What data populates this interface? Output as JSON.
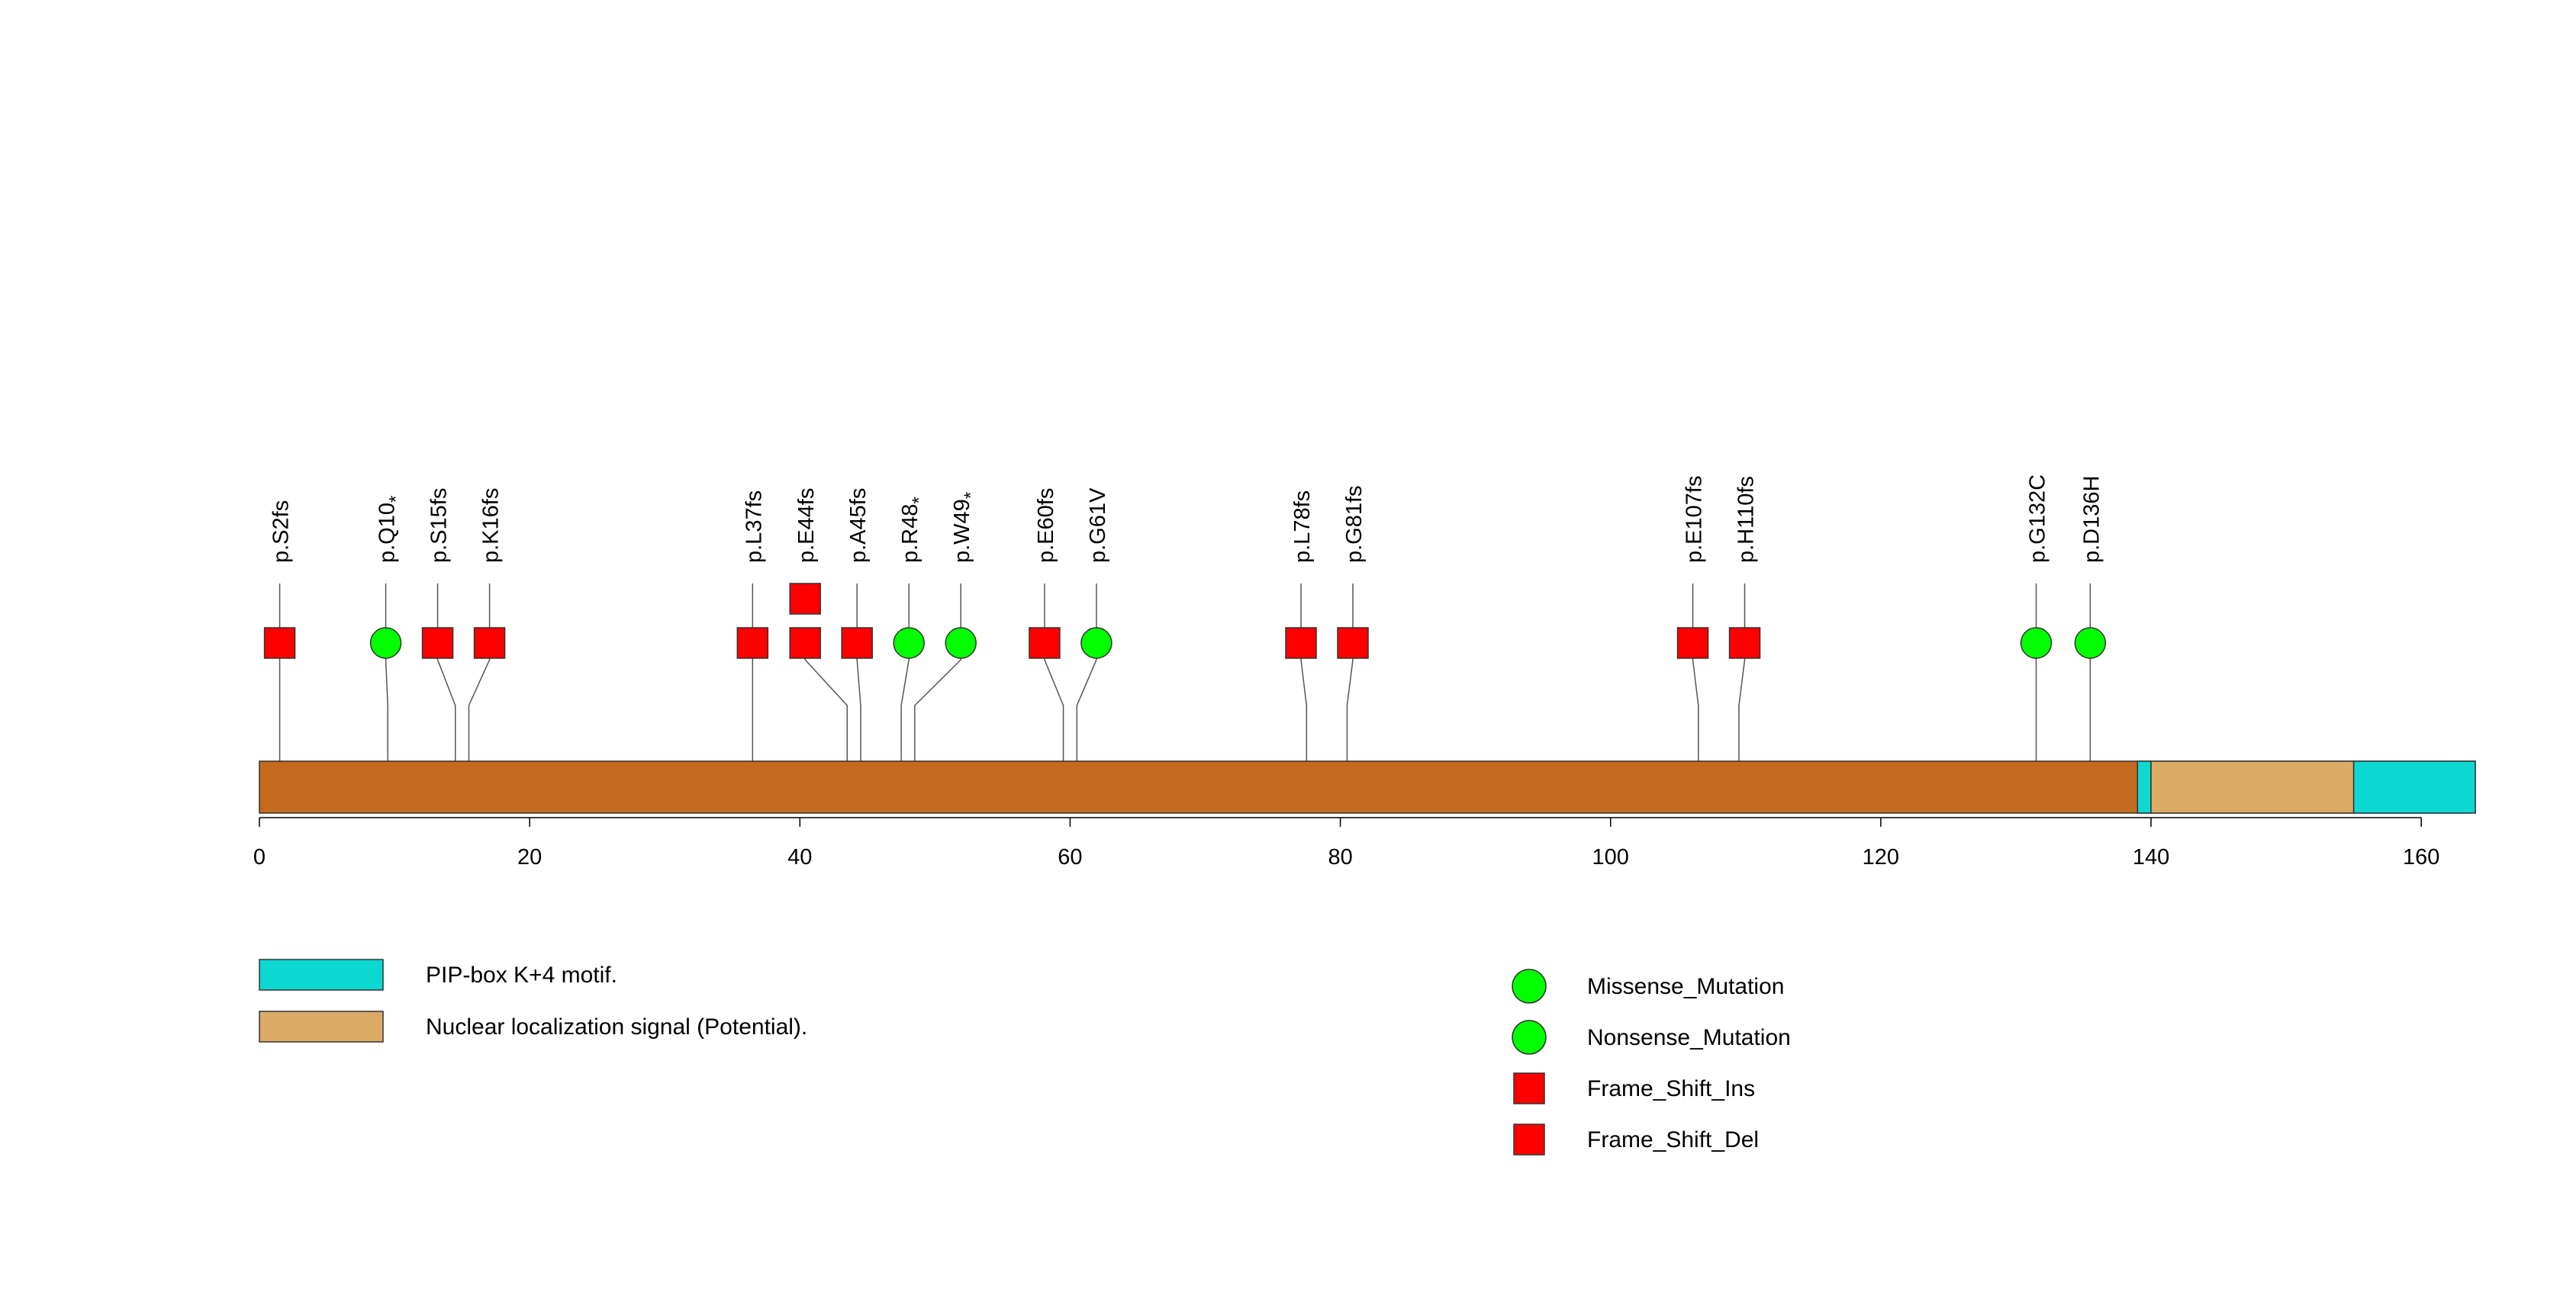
{
  "chart_data": {
    "type": "lollipop",
    "protein": {
      "length": 164,
      "base_color": "#C46A1E"
    },
    "domains": [
      {
        "name": "PIP-box K+4 motif.",
        "start": 139,
        "end": 140,
        "color": "#0CD8D2"
      },
      {
        "name": "Nuclear localization signal (Potential).",
        "start": 140,
        "end": 155,
        "color": "#DBAB66"
      },
      {
        "name": "PIP-box K+4 motif.",
        "start": 155,
        "end": 164,
        "color": "#0CD8D2"
      }
    ],
    "axis": {
      "min": 0,
      "max": 164,
      "ticks": [
        "0",
        "20",
        "40",
        "60",
        "80",
        "100",
        "120",
        "140",
        "160"
      ],
      "tick_values": [
        0,
        20,
        40,
        60,
        80,
        100,
        120,
        140,
        160
      ]
    },
    "mutations": [
      {
        "label": "p.S2fs",
        "position": 2,
        "type": "Frame_Shift_Del",
        "count": 1
      },
      {
        "label": "p.Q10",
        "position": 10,
        "type": "Nonsense_Mutation",
        "count": 1,
        "stop_marker": "*"
      },
      {
        "label": "p.S15fs",
        "position": 15,
        "type": "Frame_Shift_Del",
        "count": 1
      },
      {
        "label": "p.K16fs",
        "position": 16,
        "type": "Frame_Shift_Del",
        "count": 1
      },
      {
        "label": "p.L37fs",
        "position": 37,
        "type": "Frame_Shift_Del",
        "count": 1
      },
      {
        "label": "p.E44fs",
        "position": 44,
        "type": "Frame_Shift_Del",
        "count": 2
      },
      {
        "label": "p.A45fs",
        "position": 45,
        "type": "Frame_Shift_Del",
        "count": 1
      },
      {
        "label": "p.R48",
        "position": 48,
        "type": "Nonsense_Mutation",
        "count": 1,
        "stop_marker": "*"
      },
      {
        "label": "p.W49",
        "position": 49,
        "type": "Nonsense_Mutation",
        "count": 1,
        "stop_marker": "*"
      },
      {
        "label": "p.E60fs",
        "position": 60,
        "type": "Frame_Shift_Del",
        "count": 1
      },
      {
        "label": "p.G61V",
        "position": 61,
        "type": "Missense_Mutation",
        "count": 1
      },
      {
        "label": "p.L78fs",
        "position": 78,
        "type": "Frame_Shift_Del",
        "count": 1
      },
      {
        "label": "p.G81fs",
        "position": 81,
        "type": "Frame_Shift_Del",
        "count": 1
      },
      {
        "label": "p.E107fs",
        "position": 107,
        "type": "Frame_Shift_Del",
        "count": 1
      },
      {
        "label": "p.H110fs",
        "position": 110,
        "type": "Frame_Shift_Del",
        "count": 1
      },
      {
        "label": "p.G132C",
        "position": 132,
        "type": "Missense_Mutation",
        "count": 1
      },
      {
        "label": "p.D136H",
        "position": 136,
        "type": "Missense_Mutation",
        "count": 1
      }
    ],
    "domain_legend": [
      {
        "label": "PIP-box K+4 motif.",
        "color": "#0CD8D2"
      },
      {
        "label": "Nuclear localization signal (Potential).",
        "color": "#DBAB66"
      }
    ],
    "mutation_legend": [
      {
        "label": "Missense_Mutation",
        "shape": "circle",
        "color": "#00FF00"
      },
      {
        "label": "Nonsense_Mutation",
        "shape": "circle",
        "color": "#00FF00"
      },
      {
        "label": "Frame_Shift_Ins",
        "shape": "square",
        "color": "#FF0000"
      },
      {
        "label": "Frame_Shift_Del",
        "shape": "square",
        "color": "#FF0000"
      }
    ]
  }
}
